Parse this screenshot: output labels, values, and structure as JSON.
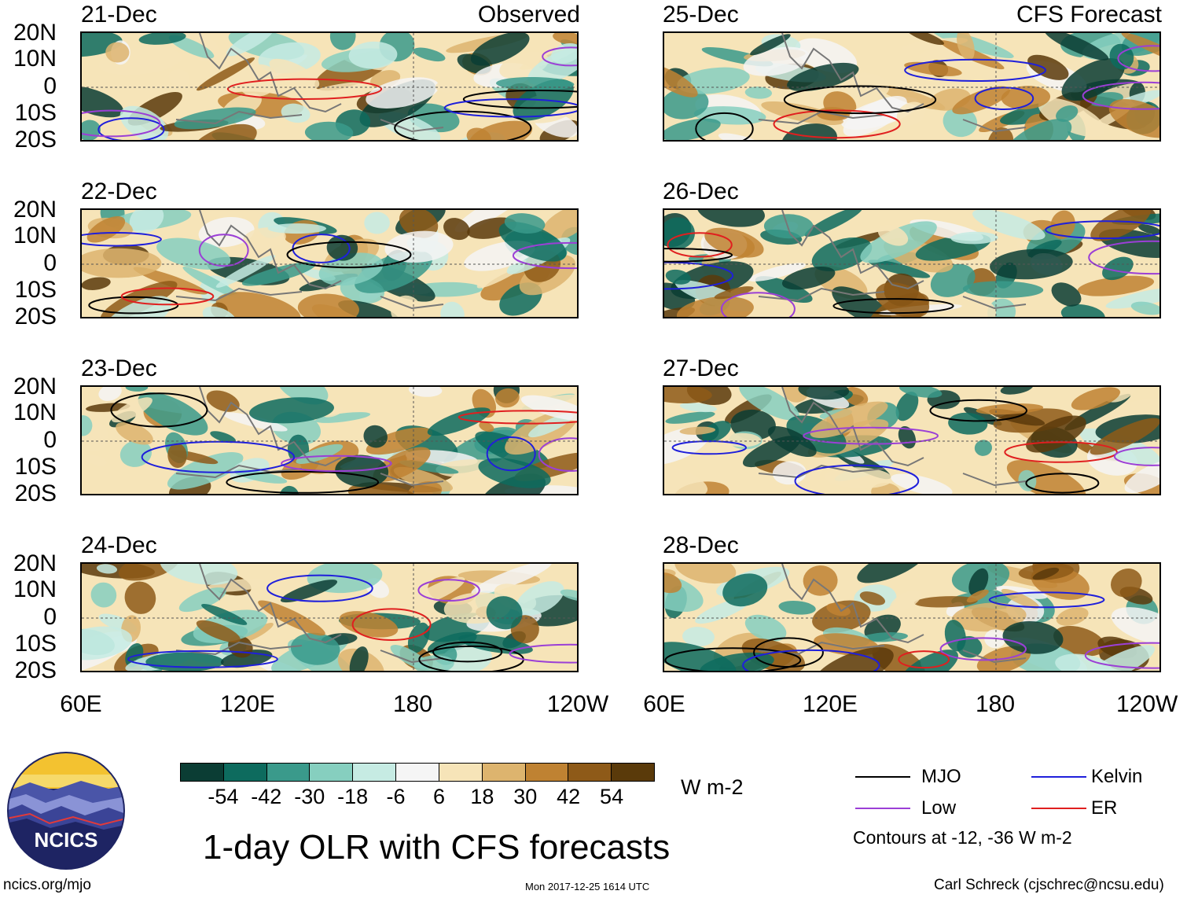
{
  "figure": {
    "title": "1-day OLR with CFS forecasts",
    "observed_label": "Observed",
    "forecast_label": "CFS Forecast",
    "unit": "W m-2"
  },
  "observed_panels": [
    {
      "date": "21-Dec"
    },
    {
      "date": "22-Dec"
    },
    {
      "date": "23-Dec"
    },
    {
      "date": "24-Dec"
    }
  ],
  "forecast_panels": [
    {
      "date": "25-Dec"
    },
    {
      "date": "26-Dec"
    },
    {
      "date": "27-Dec"
    },
    {
      "date": "28-Dec"
    }
  ],
  "axes": {
    "lat_labels": [
      "20N",
      "10N",
      "0",
      "10S",
      "20S"
    ],
    "lon_labels": [
      "60E",
      "120E",
      "180",
      "120W"
    ]
  },
  "colorbar": {
    "tick_labels": [
      "-54",
      "-42",
      "-30",
      "-18",
      "-6",
      "6",
      "18",
      "30",
      "42",
      "54"
    ],
    "colors": [
      "#0b3d34",
      "#0d6b5e",
      "#3a9a8b",
      "#86cfbf",
      "#c6ebe3",
      "#f5f5f5",
      "#f6e4b8",
      "#ddb46e",
      "#bf8232",
      "#8e5a18",
      "#5a3a0a"
    ]
  },
  "legend": {
    "items": [
      {
        "label": "MJO",
        "color": "#000000"
      },
      {
        "label": "Kelvin",
        "color": "#1f1fdb"
      },
      {
        "label": "Low",
        "color": "#9b3fd6"
      },
      {
        "label": "ER",
        "color": "#e01f1f"
      }
    ],
    "contour_note": "Contours at -12, -36 W m-2"
  },
  "logo": {
    "text": "NCICS"
  },
  "footer": {
    "left": "ncics.org/mjo",
    "middle": "Mon 2017-12-25 1614 UTC",
    "right": "Carl Schreck (cjschrec@ncsu.edu)"
  }
}
